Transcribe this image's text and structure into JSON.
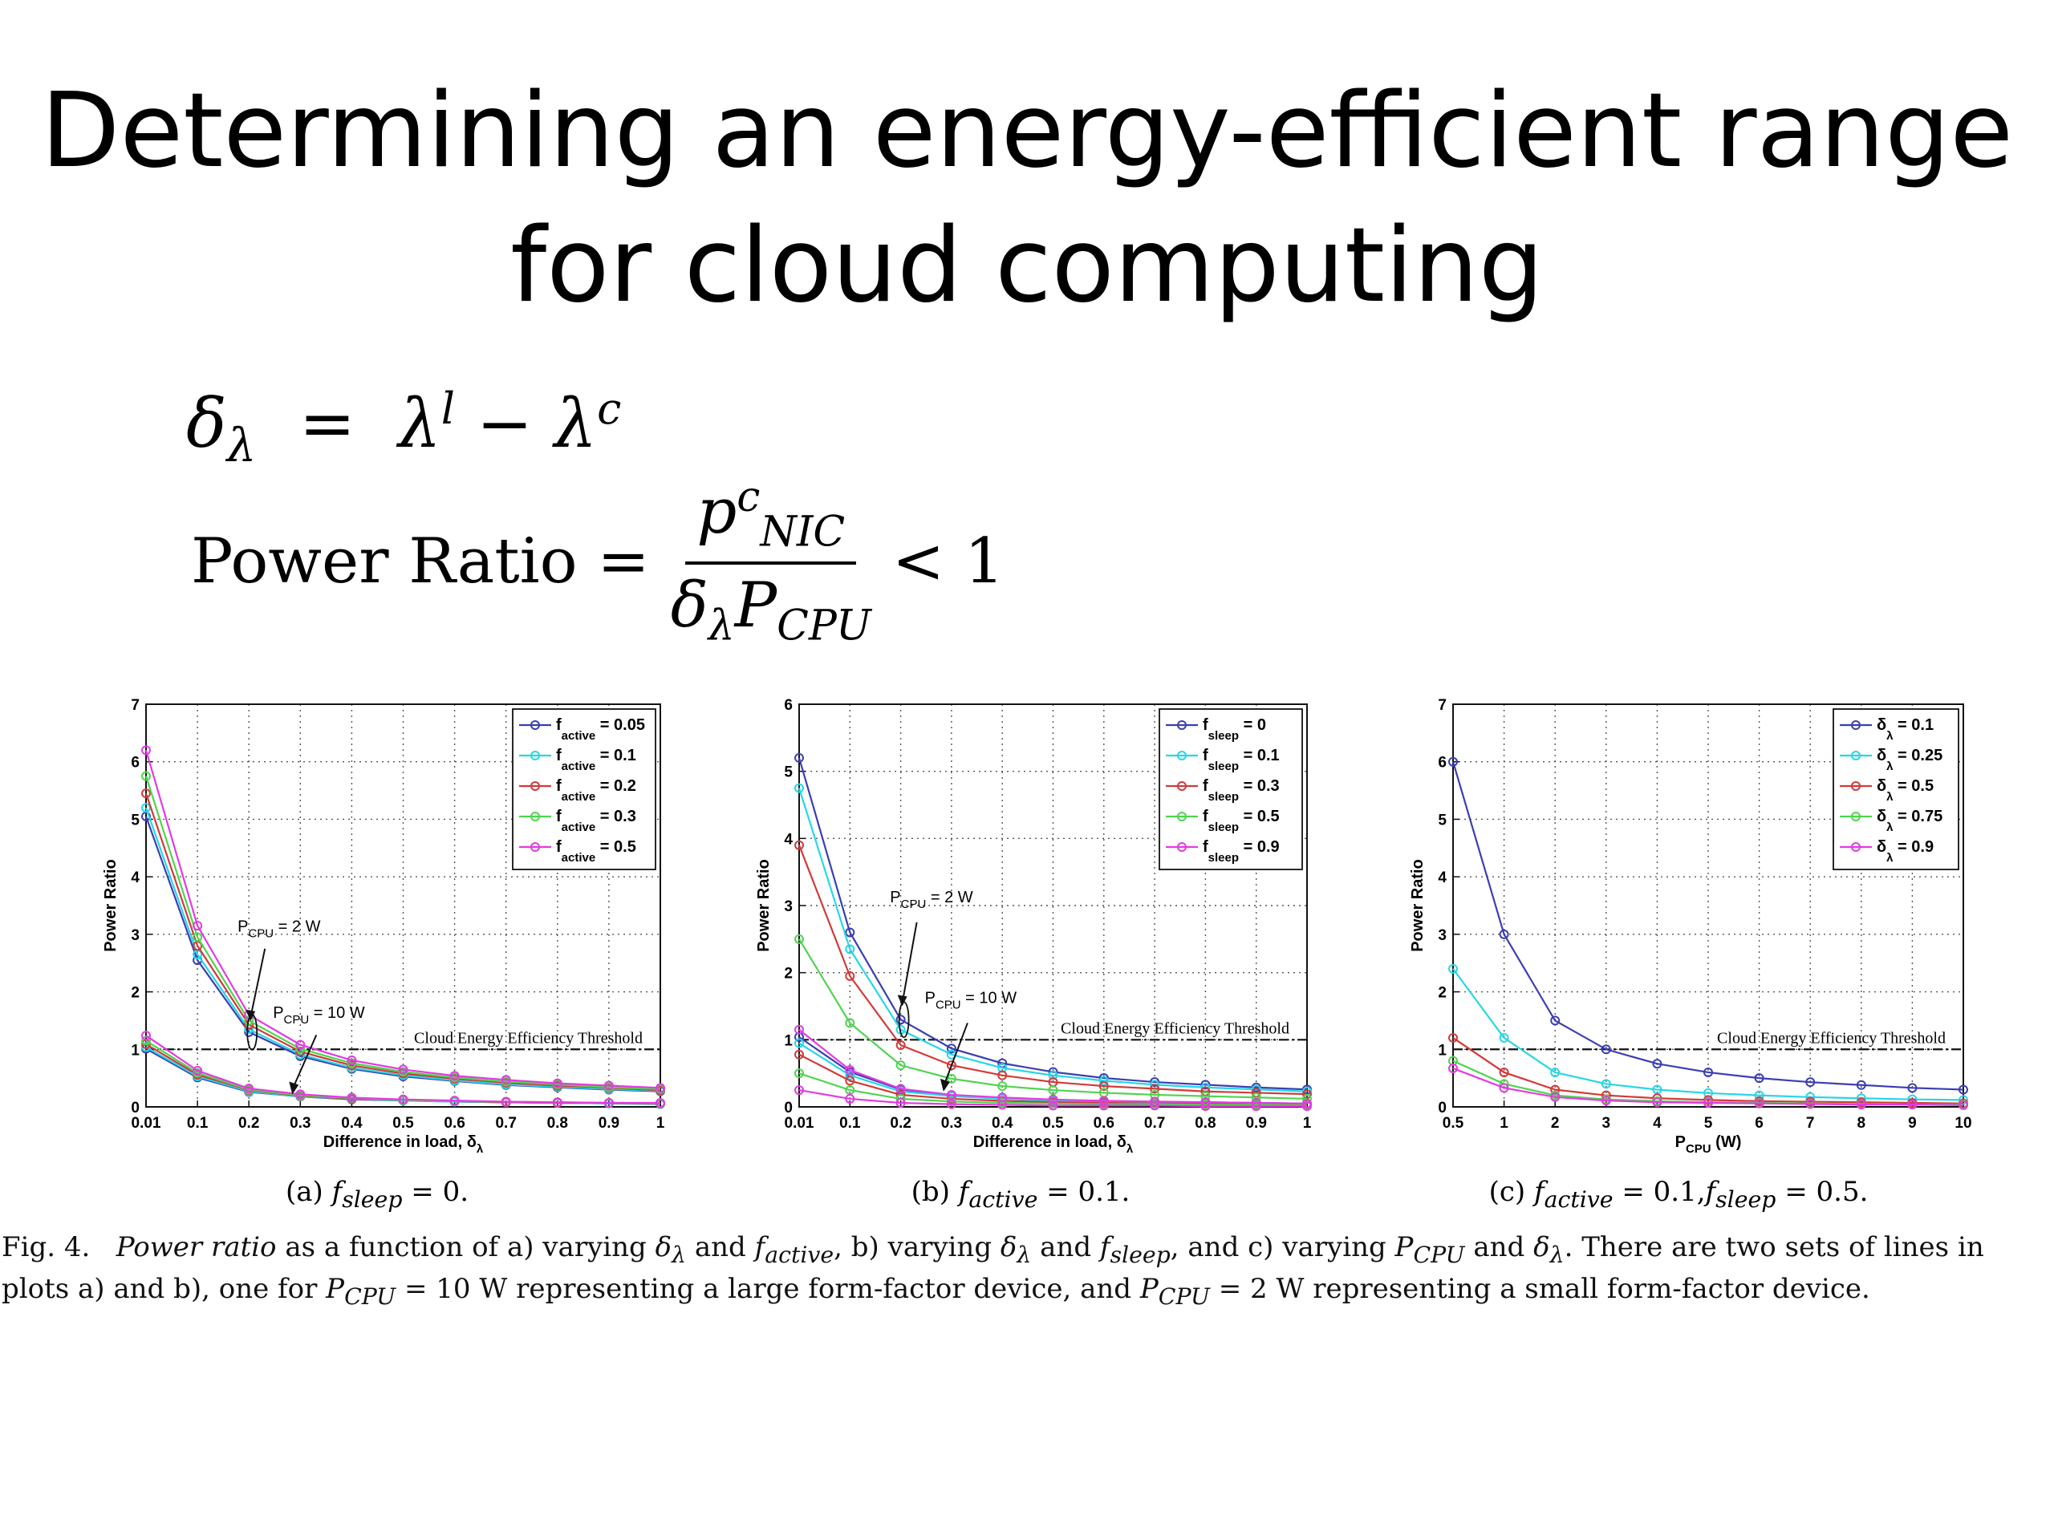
{
  "slide": {
    "title_line1": "Determining an energy-efficient range",
    "title_line2": "for cloud computing"
  },
  "equations": {
    "delta_def": "δλ = λl − λc",
    "power_ratio_lhs": "Power Ratio =",
    "power_ratio_num": "p c NIC",
    "power_ratio_den": "δλ P CPU",
    "power_ratio_rhs": "< 1"
  },
  "chart_data": [
    {
      "type": "line",
      "panel": "a",
      "caption": "(a) fsleep = 0.",
      "ylabel": "Power Ratio",
      "xlabel": "Difference in load, δλ",
      "xticks": [
        "0.01",
        "0.1",
        "0.2",
        "0.3",
        "0.4",
        "0.5",
        "0.6",
        "0.7",
        "0.8",
        "0.9",
        "1"
      ],
      "x": [
        0.01,
        0.1,
        0.2,
        0.3,
        0.4,
        0.5,
        0.6,
        0.7,
        0.8,
        0.9,
        1
      ],
      "ylim": [
        0,
        7
      ],
      "yticks": [
        "0",
        "1",
        "2",
        "3",
        "4",
        "5",
        "6",
        "7"
      ],
      "grid": true,
      "legend_position": "top-right",
      "threshold": {
        "value": 1,
        "label": "Cloud Energy Efficiency Threshold"
      },
      "annotations": [
        {
          "base": "P",
          "sub": "CPU",
          "rest": " = 2 W"
        },
        {
          "base": "P",
          "sub": "CPU",
          "rest": " = 10 W"
        }
      ],
      "series": [
        {
          "name": "f active = 0.05",
          "sym": "f",
          "sub": "active",
          "val": " = 0.05",
          "color": "#3b3fb0",
          "values_2w": [
            5.05,
            2.55,
            1.3,
            0.88,
            0.66,
            0.53,
            0.45,
            0.38,
            0.34,
            0.3,
            0.27
          ],
          "values_10w": [
            1.01,
            0.51,
            0.26,
            0.18,
            0.13,
            0.11,
            0.09,
            0.08,
            0.07,
            0.06,
            0.05
          ]
        },
        {
          "name": "f active = 0.1",
          "sym": "f",
          "sub": "active",
          "val": " = 0.1",
          "color": "#27d6e6",
          "values_2w": [
            5.2,
            2.65,
            1.35,
            0.91,
            0.68,
            0.55,
            0.46,
            0.39,
            0.35,
            0.31,
            0.28
          ],
          "values_10w": [
            1.04,
            0.53,
            0.27,
            0.18,
            0.14,
            0.11,
            0.09,
            0.08,
            0.07,
            0.06,
            0.06
          ]
        },
        {
          "name": "f active = 0.2",
          "sym": "f",
          "sub": "active",
          "val": " = 0.2",
          "color": "#d23a3a",
          "values_2w": [
            5.45,
            2.8,
            1.43,
            0.96,
            0.72,
            0.58,
            0.49,
            0.42,
            0.37,
            0.33,
            0.29
          ],
          "values_10w": [
            1.09,
            0.56,
            0.29,
            0.19,
            0.14,
            0.12,
            0.1,
            0.08,
            0.07,
            0.07,
            0.06
          ]
        },
        {
          "name": "f active = 0.3",
          "sym": "f",
          "sub": "active",
          "val": " = 0.3",
          "color": "#4fd44f",
          "values_2w": [
            5.75,
            2.95,
            1.5,
            1.01,
            0.76,
            0.61,
            0.51,
            0.44,
            0.39,
            0.34,
            0.31
          ],
          "values_10w": [
            1.15,
            0.59,
            0.3,
            0.2,
            0.15,
            0.12,
            0.1,
            0.09,
            0.08,
            0.07,
            0.06
          ]
        },
        {
          "name": "f active = 0.5",
          "sym": "f",
          "sub": "active",
          "val": " = 0.5",
          "color": "#e23be2",
          "values_2w": [
            6.2,
            3.15,
            1.6,
            1.08,
            0.81,
            0.65,
            0.54,
            0.47,
            0.41,
            0.37,
            0.33
          ],
          "values_10w": [
            1.24,
            0.63,
            0.32,
            0.22,
            0.16,
            0.13,
            0.11,
            0.09,
            0.08,
            0.07,
            0.07
          ]
        }
      ]
    },
    {
      "type": "line",
      "panel": "b",
      "caption": "(b) factive = 0.1.",
      "ylabel": "Power Ratio",
      "xlabel": "Difference in load, δλ",
      "xticks": [
        "0.01",
        "0.1",
        "0.2",
        "0.3",
        "0.4",
        "0.5",
        "0.6",
        "0.7",
        "0.8",
        "0.9",
        "1"
      ],
      "x": [
        0.01,
        0.1,
        0.2,
        0.3,
        0.4,
        0.5,
        0.6,
        0.7,
        0.8,
        0.9,
        1
      ],
      "ylim": [
        0,
        6
      ],
      "yticks": [
        "0",
        "1",
        "2",
        "3",
        "4",
        "5",
        "6"
      ],
      "grid": true,
      "legend_position": "top-right",
      "threshold": {
        "value": 1,
        "label": "Cloud Energy Efficiency Threshold"
      },
      "annotations": [
        {
          "base": "P",
          "sub": "CPU",
          "rest": " = 2 W"
        },
        {
          "base": "P",
          "sub": "CPU",
          "rest": " = 10 W"
        }
      ],
      "series": [
        {
          "name": "f sleep = 0",
          "sym": "f",
          "sub": "sleep",
          "val": " = 0",
          "color": "#3b3fb0",
          "values_2w": [
            5.2,
            2.6,
            1.3,
            0.87,
            0.65,
            0.52,
            0.43,
            0.37,
            0.33,
            0.29,
            0.26
          ],
          "values_10w": [
            1.04,
            0.52,
            0.26,
            0.17,
            0.13,
            0.1,
            0.09,
            0.07,
            0.07,
            0.06,
            0.05
          ]
        },
        {
          "name": "f sleep = 0.1",
          "sym": "f",
          "sub": "sleep",
          "val": " = 0.1",
          "color": "#27d6e6",
          "values_2w": [
            4.75,
            2.35,
            1.15,
            0.78,
            0.58,
            0.47,
            0.39,
            0.33,
            0.29,
            0.26,
            0.23
          ],
          "values_10w": [
            0.95,
            0.47,
            0.23,
            0.16,
            0.12,
            0.09,
            0.08,
            0.07,
            0.06,
            0.05,
            0.05
          ]
        },
        {
          "name": "f sleep = 0.3",
          "sym": "f",
          "sub": "sleep",
          "val": " = 0.3",
          "color": "#d23a3a",
          "values_2w": [
            3.9,
            1.95,
            0.92,
            0.62,
            0.47,
            0.37,
            0.31,
            0.27,
            0.23,
            0.21,
            0.19
          ],
          "values_10w": [
            0.78,
            0.39,
            0.18,
            0.12,
            0.09,
            0.07,
            0.06,
            0.05,
            0.05,
            0.04,
            0.04
          ]
        },
        {
          "name": "f sleep = 0.5",
          "sym": "f",
          "sub": "sleep",
          "val": " = 0.5",
          "color": "#4fd44f",
          "values_2w": [
            2.5,
            1.25,
            0.62,
            0.42,
            0.31,
            0.25,
            0.21,
            0.18,
            0.16,
            0.14,
            0.12
          ],
          "values_10w": [
            0.5,
            0.25,
            0.12,
            0.08,
            0.06,
            0.05,
            0.04,
            0.04,
            0.03,
            0.03,
            0.02
          ]
        },
        {
          "name": "f sleep = 0.9",
          "sym": "f",
          "sub": "sleep",
          "val": " = 0.9",
          "color": "#e23be2",
          "values_2w": [
            1.15,
            0.55,
            0.27,
            0.18,
            0.14,
            0.11,
            0.09,
            0.08,
            0.07,
            0.06,
            0.05
          ],
          "values_10w": [
            0.25,
            0.12,
            0.06,
            0.04,
            0.03,
            0.02,
            0.02,
            0.02,
            0.01,
            0.01,
            0.01
          ]
        }
      ]
    },
    {
      "type": "line",
      "panel": "c",
      "caption": "(c) factive = 0.1, fsleep = 0.5.",
      "ylabel": "Power Ratio",
      "xlabel": "P CPU (W)",
      "xticks": [
        "0.5",
        "1",
        "2",
        "3",
        "4",
        "5",
        "6",
        "7",
        "8",
        "9",
        "10"
      ],
      "x": [
        0.5,
        1,
        2,
        3,
        4,
        5,
        6,
        7,
        8,
        9,
        10
      ],
      "ylim": [
        0,
        7
      ],
      "yticks": [
        "0",
        "1",
        "2",
        "3",
        "4",
        "5",
        "6",
        "7"
      ],
      "grid": true,
      "legend_position": "top-right",
      "threshold": {
        "value": 1,
        "label": "Cloud Energy Efficiency Threshold"
      },
      "series": [
        {
          "name": "δλ = 0.1",
          "sym": "δ",
          "sub": "λ",
          "val": " = 0.1",
          "color": "#3b3fb0",
          "values": [
            6.0,
            3.0,
            1.5,
            1.0,
            0.75,
            0.6,
            0.5,
            0.43,
            0.38,
            0.33,
            0.3
          ]
        },
        {
          "name": "δλ = 0.25",
          "sym": "δ",
          "sub": "λ",
          "val": " = 0.25",
          "color": "#27d6e6",
          "values": [
            2.4,
            1.2,
            0.6,
            0.4,
            0.3,
            0.24,
            0.2,
            0.17,
            0.15,
            0.13,
            0.12
          ]
        },
        {
          "name": "δλ = 0.5",
          "sym": "δ",
          "sub": "λ",
          "val": " = 0.5",
          "color": "#d23a3a",
          "values": [
            1.2,
            0.6,
            0.3,
            0.2,
            0.15,
            0.12,
            0.1,
            0.09,
            0.08,
            0.07,
            0.06
          ]
        },
        {
          "name": "δλ = 0.75",
          "sym": "δ",
          "sub": "λ",
          "val": " = 0.75",
          "color": "#4fd44f",
          "values": [
            0.8,
            0.4,
            0.2,
            0.13,
            0.1,
            0.08,
            0.07,
            0.06,
            0.05,
            0.04,
            0.04
          ]
        },
        {
          "name": "δλ = 0.9",
          "sym": "δ",
          "sub": "λ",
          "val": " = 0.9",
          "color": "#e23be2",
          "values": [
            0.67,
            0.33,
            0.17,
            0.11,
            0.08,
            0.07,
            0.06,
            0.05,
            0.04,
            0.04,
            0.03
          ]
        }
      ]
    }
  ],
  "figure_caption": {
    "fig_label": "Fig. 4.",
    "text_html": "<span class=\"it\">Power ratio</span> as a function of a) varying <span class=\"it\">δ<sub>λ</sub></span> and <span class=\"it\">f<sub>active</sub></span>, b) varying <span class=\"it\">δ<sub>λ</sub></span> and <span class=\"it\">f<sub>sleep</sub></span>, and c) varying <span class=\"it\">P<sub>CPU</sub></span> and <span class=\"it\">δ<sub>λ</sub></span>. There are two sets of lines in plots a) and b), one for <span class=\"it\">P<sub>CPU</sub></span> = 10 W representing a large form-factor device, and <span class=\"it\">P<sub>CPU</sub></span> = 2 W representing a small form-factor device."
  }
}
